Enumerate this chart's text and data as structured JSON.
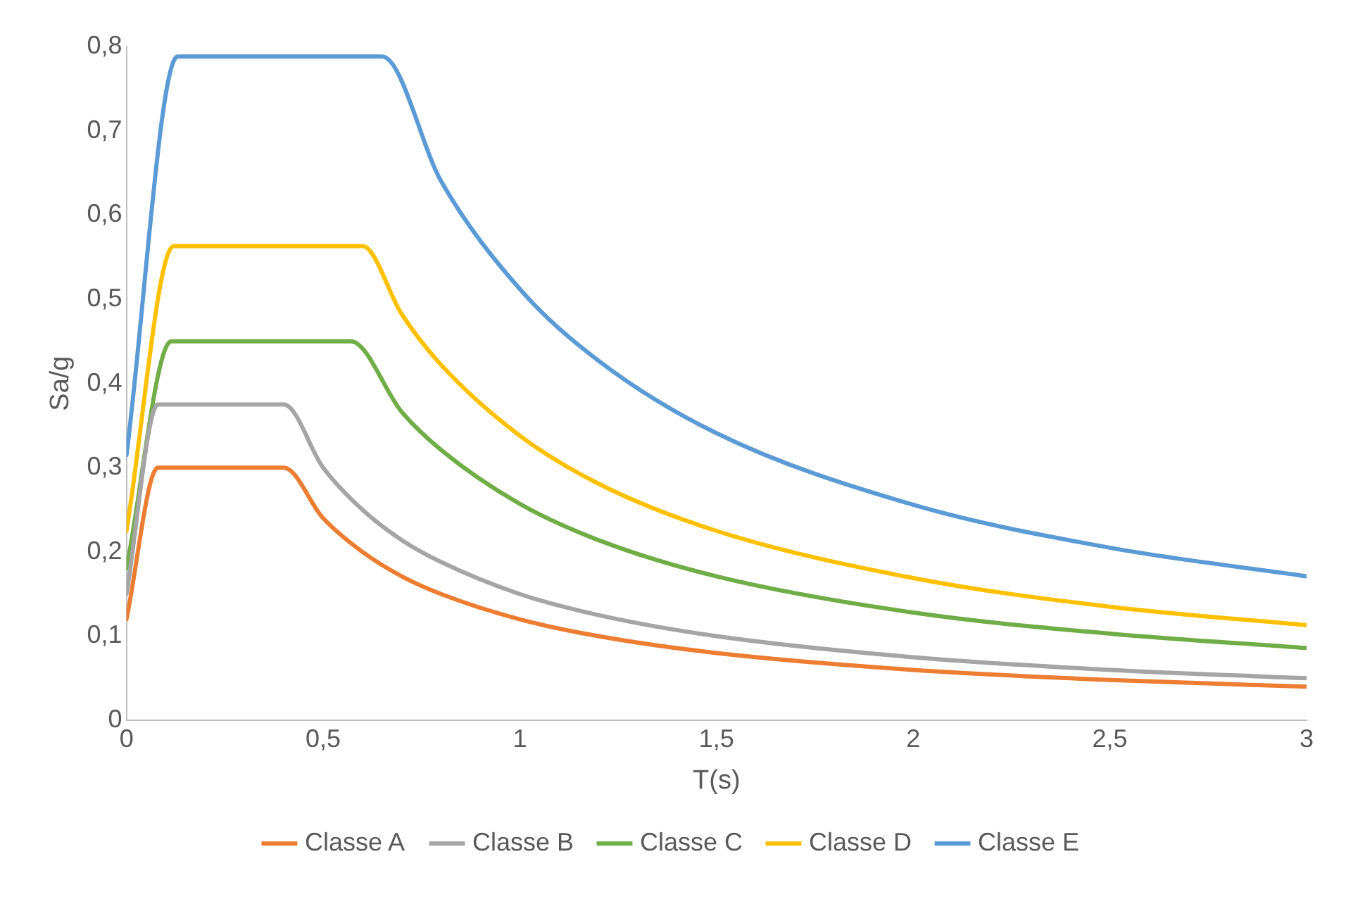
{
  "chart_data": {
    "type": "line",
    "xlabel": "T(s)",
    "ylabel": "Sa/g",
    "xlim": [
      0,
      3
    ],
    "xticks": [
      0,
      {
        "value": 0.5,
        "label": "0,5"
      },
      1,
      {
        "value": 1.5,
        "label": "1,5"
      },
      2,
      {
        "value": 2.5,
        "label": "2,5"
      },
      3
    ],
    "ylim": [
      0,
      0.8
    ],
    "yticks": [
      0,
      {
        "value": 0.1,
        "label": "0,1"
      },
      {
        "value": 0.2,
        "label": "0,2"
      },
      {
        "value": 0.3,
        "label": "0,3"
      },
      {
        "value": 0.4,
        "label": "0,4"
      },
      {
        "value": 0.5,
        "label": "0,5"
      },
      {
        "value": 0.6,
        "label": "0,6"
      },
      {
        "value": 0.7,
        "label": "0,7"
      },
      {
        "value": 0.8,
        "label": "0,8"
      }
    ],
    "grid": false,
    "legend": "bottom",
    "series": [
      {
        "name": "Classe A",
        "color": "#ed7d31",
        "x": [
          0,
          0.08,
          0.4,
          0.5,
          0.6,
          0.7,
          0.8,
          1,
          1.2,
          1.5,
          2,
          2.5,
          3
        ],
        "values": [
          0.12,
          0.3,
          0.3,
          0.24,
          0.2,
          0.171,
          0.15,
          0.12,
          0.1,
          0.08,
          0.06,
          0.048,
          0.04
        ]
      },
      {
        "name": "Classe B",
        "color": "#a5a5a5",
        "x": [
          0,
          0.08,
          0.4,
          0.5,
          0.6,
          0.7,
          0.8,
          1,
          1.2,
          1.5,
          2,
          2.5,
          3
        ],
        "values": [
          0.15,
          0.375,
          0.375,
          0.3,
          0.25,
          0.214,
          0.188,
          0.15,
          0.125,
          0.1,
          0.075,
          0.06,
          0.05
        ]
      },
      {
        "name": "Classe C",
        "color": "#70ad47",
        "x": [
          0,
          0.114,
          0.57,
          0.7,
          0.8,
          1,
          1.2,
          1.5,
          2,
          2.5,
          3
        ],
        "values": [
          0.18,
          0.45,
          0.45,
          0.366,
          0.321,
          0.257,
          0.214,
          0.171,
          0.128,
          0.103,
          0.086
        ]
      },
      {
        "name": "Classe D",
        "color": "#ffc000",
        "x": [
          0,
          0.12,
          0.6,
          0.7,
          0.8,
          1,
          1.2,
          1.5,
          2,
          2.5,
          3
        ],
        "values": [
          0.225,
          0.563,
          0.563,
          0.482,
          0.422,
          0.338,
          0.281,
          0.225,
          0.169,
          0.135,
          0.113
        ]
      },
      {
        "name": "Classe E",
        "color": "#5b9bd5",
        "x": [
          0,
          0.13,
          0.65,
          0.8,
          1,
          1.2,
          1.5,
          2,
          2.5,
          3
        ],
        "values": [
          0.315,
          0.788,
          0.788,
          0.64,
          0.512,
          0.427,
          0.341,
          0.256,
          0.205,
          0.171
        ]
      }
    ]
  }
}
